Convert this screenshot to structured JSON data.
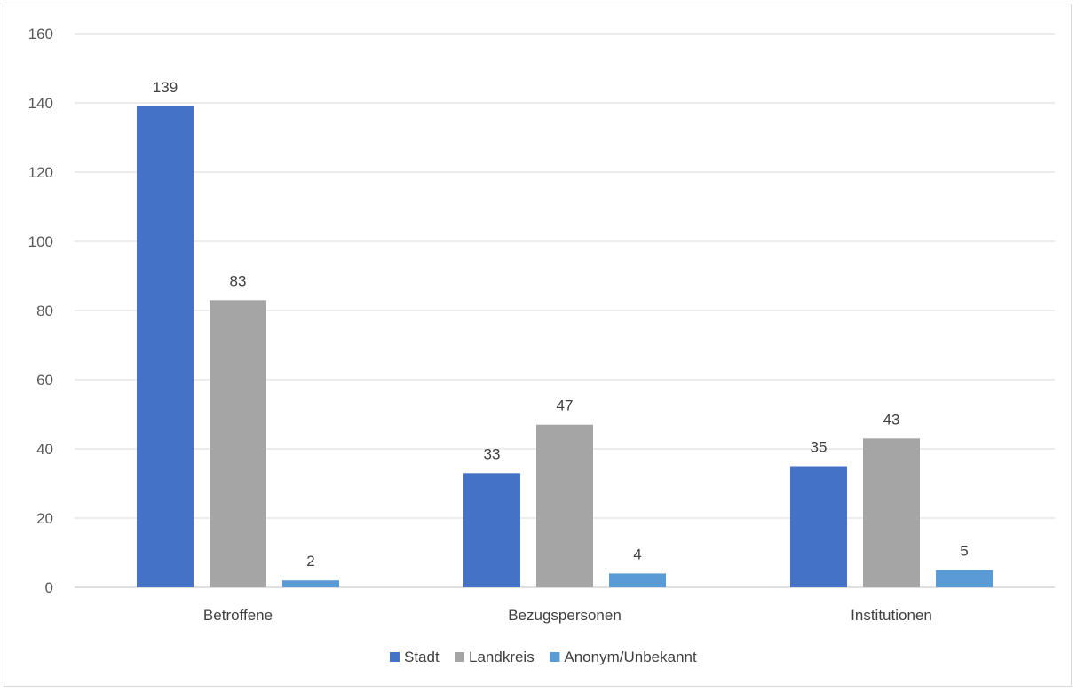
{
  "chart_data": {
    "type": "bar",
    "title": "",
    "xlabel": "",
    "ylabel": "",
    "categories": [
      "Betroffene",
      "Bezugspersonen",
      "Institutionen"
    ],
    "series": [
      {
        "name": "Stadt",
        "values": [
          139,
          33,
          35
        ],
        "color": "#4472C4"
      },
      {
        "name": "Landkreis",
        "values": [
          83,
          47,
          43
        ],
        "color": "#A5A5A5"
      },
      {
        "name": "Anonym/Unbekannt",
        "values": [
          2,
          4,
          5
        ],
        "color": "#5B9BD5"
      }
    ],
    "ylim": [
      0,
      160
    ],
    "yticks": [
      "0",
      "20",
      "40",
      "60",
      "80",
      "100",
      "120",
      "140",
      "160"
    ],
    "grid": true,
    "legend": "bottom",
    "data_labels": true
  }
}
